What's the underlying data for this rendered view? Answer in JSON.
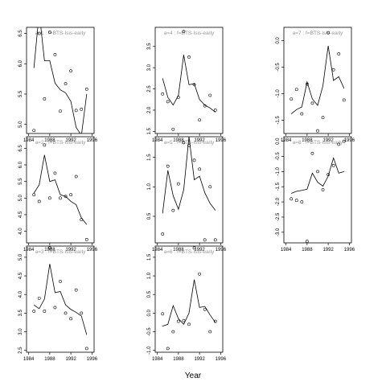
{
  "xlabel": "Year",
  "chart_data": [
    {
      "type": "line",
      "strip": "a=1 : f=BTS-Isis-early",
      "ylim": [
        4.85,
        6.6
      ],
      "yticks": [
        "5.0",
        "5.5",
        "6.0",
        "6.5"
      ],
      "xticks": [
        "1984",
        "1988",
        "1992",
        "1996"
      ],
      "xlim": [
        1983.6,
        1996.4
      ],
      "x": [
        1985,
        1986,
        1987,
        1988,
        1989,
        1990,
        1991,
        1992,
        1993,
        1994,
        1995
      ],
      "line": [
        5.93,
        6.85,
        6.05,
        6.05,
        5.68,
        5.57,
        5.52,
        5.38,
        4.95,
        4.82,
        5.5
      ],
      "points": [
        4.9,
        6.5,
        5.42,
        6.52,
        6.15,
        5.22,
        5.67,
        5.88,
        5.23,
        5.25,
        5.58
      ]
    },
    {
      "type": "line",
      "strip": "a=4 : f=BTS-Isis-early",
      "ylim": [
        1.45,
        3.95
      ],
      "yticks": [
        "1.5",
        "2.0",
        "2.5",
        "3.0",
        "3.5"
      ],
      "xticks": [
        "1984",
        "1988",
        "1992",
        "1996"
      ],
      "xlim": [
        1983.6,
        1996.4
      ],
      "x": [
        1985,
        1986,
        1987,
        1988,
        1989,
        1990,
        1991,
        1992,
        1993,
        1994,
        1995
      ],
      "line": [
        2.75,
        2.3,
        2.12,
        2.35,
        3.3,
        2.6,
        2.62,
        2.25,
        2.12,
        2.05,
        1.95
      ],
      "points": [
        2.38,
        2.2,
        1.55,
        2.3,
        3.85,
        3.25,
        2.6,
        1.77,
        2.1,
        2.35,
        2.0
      ]
    },
    {
      "type": "line",
      "strip": "a=7 : f=BTS-Isis-early",
      "ylim": [
        -1.75,
        0.25
      ],
      "yticks": [
        "-1.5",
        "-1.0",
        "-0.5",
        "0.0"
      ],
      "xticks": [
        "1984",
        "1988",
        "1992",
        "1996"
      ],
      "xlim": [
        1983.6,
        1996.4
      ],
      "x": [
        1985,
        1986,
        1987,
        1988,
        1989,
        1990,
        1991,
        1992,
        1993,
        1994,
        1995
      ],
      "line": [
        -1.38,
        -1.3,
        -1.25,
        -0.78,
        -1.1,
        -1.22,
        -0.85,
        -0.1,
        -0.75,
        -0.68,
        -0.9
      ],
      "points": [
        -1.1,
        -0.92,
        -1.38,
        -0.82,
        -1.18,
        -1.7,
        -1.45,
        0.15,
        -0.55,
        -0.25,
        -1.12
      ]
    },
    {
      "type": "line",
      "strip": "a=2 : f=BTS-Isis-early",
      "ylim": [
        3.65,
        6.85
      ],
      "yticks": [
        "4.0",
        "4.5",
        "5.0",
        "5.5",
        "6.0",
        "6.5"
      ],
      "xticks": [
        "1984",
        "1988",
        "1992",
        "1996"
      ],
      "xlim": [
        1983.6,
        1996.4
      ],
      "x": [
        1985,
        1986,
        1987,
        1988,
        1989,
        1990,
        1991,
        1992,
        1993,
        1994,
        1995
      ],
      "line": [
        5.15,
        5.4,
        6.3,
        5.5,
        5.55,
        5.1,
        5.05,
        4.9,
        4.8,
        4.4,
        4.2
      ],
      "points": [
        5.1,
        4.9,
        6.6,
        5.0,
        5.75,
        5.0,
        5.05,
        5.1,
        5.65,
        4.35,
        3.75
      ]
    },
    {
      "type": "line",
      "strip": "a=5 : f=BTS-Isis-early",
      "ylim": [
        0.05,
        1.85
      ],
      "yticks": [
        "0.5",
        "1.0",
        "1.5"
      ],
      "xticks": [
        "1984",
        "1988",
        "1992",
        "1996"
      ],
      "xlim": [
        1983.6,
        1996.4
      ],
      "x": [
        1985,
        1986,
        1987,
        1988,
        1989,
        1990,
        1991,
        1992,
        1993,
        1994,
        1995
      ],
      "line": [
        0.55,
        1.28,
        0.85,
        0.62,
        0.95,
        1.85,
        1.12,
        1.18,
        0.9,
        0.72,
        0.6
      ],
      "points": [
        0.2,
        1.35,
        0.6,
        1.05,
        1.75,
        1.7,
        1.45,
        1.3,
        0.1,
        1.0,
        0.1
      ]
    },
    {
      "type": "line",
      "strip": "a=8 : f=BTS-Isis-early",
      "ylim": [
        -3.35,
        0.15
      ],
      "yticks": [
        "-3.0",
        "-2.5",
        "-2.0",
        "-1.5",
        "-1.0",
        "-0.5",
        "0.0"
      ],
      "xticks": [
        "1984",
        "1988",
        "1992",
        "1996"
      ],
      "xlim": [
        1983.6,
        1996.4
      ],
      "x": [
        1985,
        1986,
        1987,
        1988,
        1989,
        1990,
        1991,
        1992,
        1993,
        1994,
        1995
      ],
      "line": [
        -1.72,
        -1.65,
        -1.62,
        -1.58,
        -1.05,
        -1.35,
        -1.48,
        -1.15,
        -0.55,
        -1.05,
        -1.0
      ],
      "points": [
        -1.9,
        -1.95,
        -2.0,
        -3.3,
        -0.4,
        -1.0,
        -1.6,
        -1.1,
        -0.8,
        -0.1,
        0.0
      ]
    },
    {
      "type": "line",
      "strip": "a=3 : f=BTS-Isis-early",
      "ylim": [
        2.45,
        5.3
      ],
      "yticks": [
        "2.5",
        "3.0",
        "3.5",
        "4.0",
        "4.5",
        "5.0"
      ],
      "xticks": [
        "1984",
        "1988",
        "1992",
        "1996"
      ],
      "xlim": [
        1983.6,
        1996.4
      ],
      "x": [
        1985,
        1986,
        1987,
        1988,
        1989,
        1990,
        1991,
        1992,
        1993,
        1994,
        1995
      ],
      "line": [
        3.72,
        3.62,
        3.88,
        4.82,
        4.05,
        4.08,
        3.72,
        3.6,
        3.52,
        3.42,
        2.92
      ],
      "points": [
        3.55,
        3.9,
        3.55,
        5.25,
        3.65,
        4.35,
        3.5,
        3.35,
        4.12,
        3.5,
        2.55
      ]
    },
    {
      "type": "line",
      "strip": "a=6 : f=BTS-Isis-early",
      "ylim": [
        -1.05,
        1.8
      ],
      "yticks": [
        "-1.0",
        "-0.5",
        "0.0",
        "0.5",
        "1.0",
        "1.5"
      ],
      "xticks": [
        "1984",
        "1988",
        "1992",
        "1996"
      ],
      "xlim": [
        1983.6,
        1996.4
      ],
      "x": [
        1985,
        1986,
        1987,
        1988,
        1989,
        1990,
        1991,
        1992,
        1993,
        1994,
        1995
      ],
      "line": [
        -0.35,
        -0.3,
        0.2,
        -0.15,
        -0.3,
        0.0,
        0.9,
        0.15,
        0.18,
        -0.05,
        -0.25
      ],
      "points": [
        -0.02,
        -0.95,
        -0.5,
        -0.22,
        -0.2,
        -0.3,
        1.75,
        1.05,
        0.1,
        -0.5,
        -0.22
      ]
    }
  ]
}
